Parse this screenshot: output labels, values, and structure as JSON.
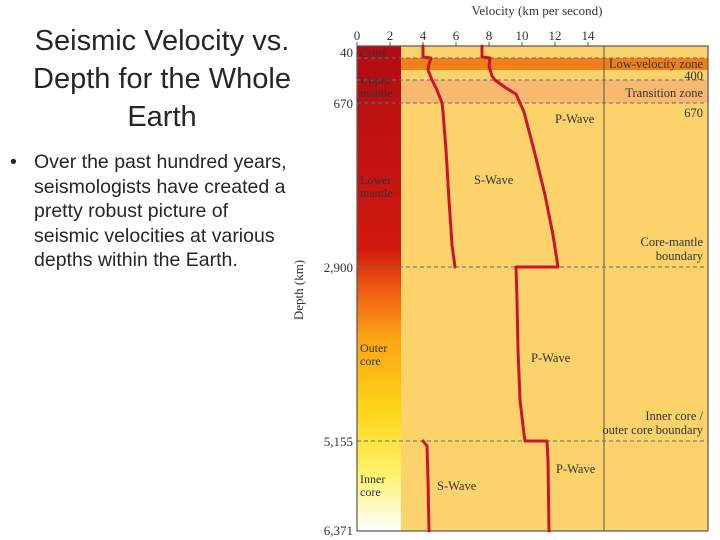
{
  "slide": {
    "title": "Seismic Velocity vs. Depth for the Whole Earth",
    "bullet": "Over the past hundred years, seismologists have created a pretty robust picture of seismic velocities at various depths within the Earth."
  },
  "figure": {
    "x_axis_title": "Velocity (km per second)",
    "y_axis_title": "Depth (km)",
    "x_ticks": [
      "0",
      "2",
      "4",
      "6",
      "8",
      "10",
      "12",
      "14"
    ],
    "depth_labels": [
      "40",
      "670",
      "2,900",
      "5,155",
      "6,371"
    ],
    "layer_labels": {
      "crust": "Crust",
      "upper_mantle": "Upper mantle",
      "lower_mantle": "Lower mantle",
      "outer_core": "Outer core",
      "inner_core": "Inner core"
    },
    "zone_labels": {
      "low_velocity_zone": "Low-velocity zone",
      "depth_400": "400",
      "transition_zone": "Transition zone",
      "depth_670": "670",
      "core_mantle_boundary": "Core-mantle boundary",
      "inner_outer_core_boundary": "Inner core / outer core boundary"
    },
    "curve_labels": {
      "p_wave_mantle": "P-Wave",
      "s_wave_mantle": "S-Wave",
      "p_wave_outer_core": "P-Wave",
      "p_wave_inner_core": "P-Wave",
      "s_wave_inner_core": "S-Wave"
    },
    "colors": {
      "background": "#fbd36a",
      "low_velocity_band": "#f07f1b",
      "transition_band": "#f9b870",
      "curve": "#c8172d",
      "boundary_line": "#6b6b6b",
      "border": "#555555"
    }
  }
}
